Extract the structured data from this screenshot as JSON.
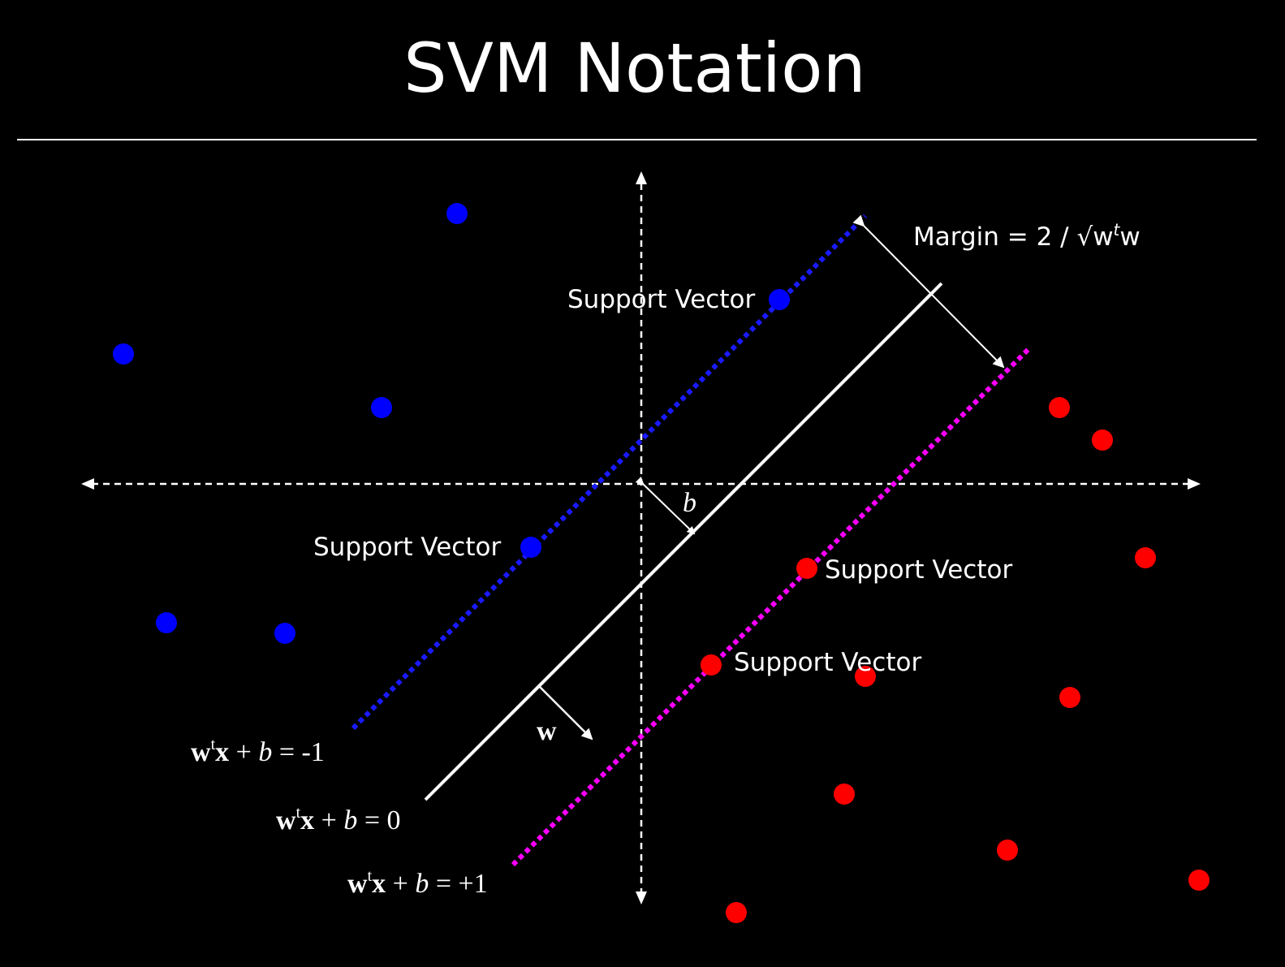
{
  "title": "SVM Notation",
  "colors": {
    "background": "#000000",
    "foreground": "#ffffff",
    "negative_class": "#0000ff",
    "positive_class": "#ff0000",
    "negative_margin_line": "#1a1aff",
    "positive_margin_line": "#ff00ff"
  },
  "margin_label": {
    "text": "Margin = 2 / √w",
    "sup": "t",
    "tail": "w"
  },
  "support_vector_label": "Support Vector",
  "hyperplanes": {
    "negative": {
      "w": "w",
      "sup": "t",
      "x": "x",
      "plus": " + ",
      "b": "b",
      "rhs": " = -1"
    },
    "decision": {
      "w": "w",
      "sup": "t",
      "x": "x",
      "plus": " + ",
      "b": "b",
      "rhs": " = 0"
    },
    "positive": {
      "w": "w",
      "sup": "t",
      "x": "x",
      "plus": " + ",
      "b": "b",
      "rhs": " = +1"
    }
  },
  "b_label": "b",
  "w_label": "w"
}
